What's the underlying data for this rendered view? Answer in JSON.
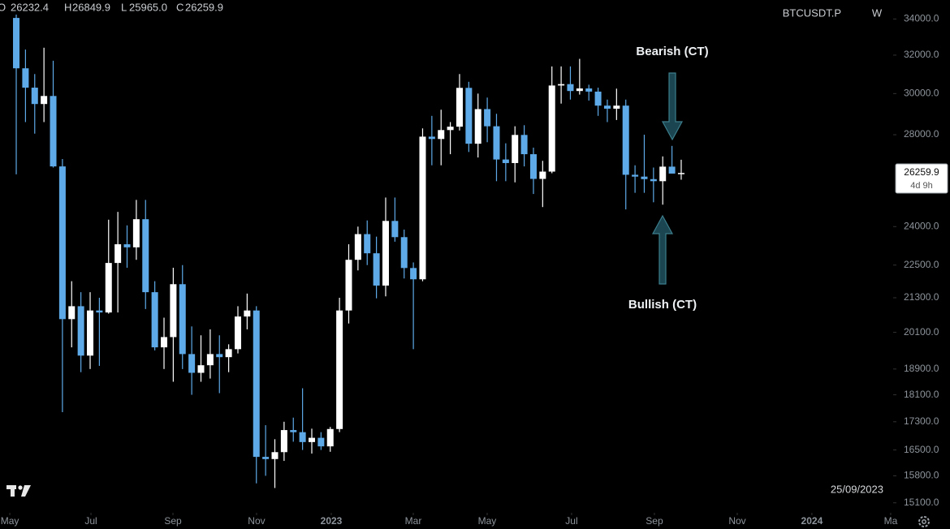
{
  "chart_data": {
    "type": "candlestick",
    "symbol": "BTCUSDT.P",
    "interval": "W",
    "ohlc_header": [
      {
        "key": "O",
        "value": "26232.4"
      },
      {
        "key": "H",
        "value": "26849.9"
      },
      {
        "key": "L",
        "value": "25965.0"
      },
      {
        "key": "C",
        "value": "26259.9"
      }
    ],
    "open": [
      34060,
      31300,
      30300,
      29480,
      29880,
      26550,
      20550,
      21000,
      19330,
      20850,
      20780,
      22580,
      23300,
      23180,
      24300,
      21500,
      19600,
      19940,
      21790,
      19380,
      18780,
      19020,
      19380,
      19280,
      19540,
      20640,
      20850,
      16310,
      16250,
      16440,
      17060,
      17000,
      16720,
      16840,
      16600,
      17090,
      20850,
      22700,
      23700,
      22950,
      21740,
      24230,
      23580,
      22390,
      21970,
      27910,
      27800,
      28220,
      28380,
      30290,
      27580,
      29230,
      28400,
      26860,
      26700,
      27990,
      27100,
      26000,
      26320,
      30410,
      30480,
      30130,
      30260,
      30100,
      29400,
      29250,
      29400,
      26180,
      26100,
      25990,
      25900,
      26540,
      26232.4
    ],
    "high": [
      34250,
      32300,
      31000,
      32400,
      31700,
      26880,
      21900,
      21500,
      21500,
      21300,
      24280,
      24600,
      24050,
      25100,
      25100,
      21900,
      20600,
      22400,
      22500,
      20300,
      20000,
      20200,
      20000,
      19700,
      21000,
      21450,
      21000,
      17200,
      16800,
      17300,
      17420,
      18300,
      17100,
      17000,
      17150,
      21300,
      23300,
      24000,
      24250,
      23600,
      25200,
      25200,
      23880,
      22600,
      28300,
      28900,
      29200,
      28600,
      31000,
      30600,
      30000,
      29800,
      29000,
      27600,
      28400,
      28450,
      27400,
      26800,
      31400,
      31400,
      31400,
      31800,
      30450,
      30300,
      29700,
      30250,
      29700,
      26600,
      28000,
      26500,
      27000,
      27480,
      26849.9
    ],
    "low": [
      26200,
      28600,
      28050,
      28600,
      26500,
      17580,
      19600,
      18800,
      18900,
      19000,
      20740,
      20780,
      22400,
      22700,
      20900,
      19500,
      18900,
      18500,
      18900,
      18100,
      18500,
      18600,
      18150,
      18800,
      19400,
      20200,
      15600,
      15800,
      15480,
      16200,
      16730,
      16500,
      16400,
      16500,
      16450,
      17000,
      20400,
      22300,
      22500,
      21280,
      21350,
      23400,
      22000,
      19540,
      21900,
      26600,
      26600,
      27100,
      28200,
      27200,
      26950,
      27650,
      25900,
      25900,
      25850,
      26550,
      25350,
      24800,
      26250,
      29500,
      29700,
      29950,
      29650,
      28900,
      28600,
      28700,
      24700,
      25400,
      25400,
      25000,
      24900,
      26300,
      25965.0
    ],
    "close": [
      31300,
      30300,
      29480,
      29880,
      26550,
      20550,
      21000,
      19330,
      20850,
      20780,
      22580,
      23300,
      23180,
      24300,
      21500,
      19600,
      19940,
      21790,
      19380,
      18780,
      19020,
      19380,
      19280,
      19540,
      20640,
      20850,
      16310,
      16250,
      16440,
      17060,
      17000,
      16720,
      16840,
      16600,
      17090,
      20850,
      22700,
      23700,
      22950,
      21740,
      24230,
      23580,
      22390,
      21970,
      27910,
      27800,
      28220,
      28380,
      30290,
      27580,
      29230,
      28400,
      26860,
      26700,
      27990,
      27100,
      26000,
      26320,
      30410,
      30480,
      30130,
      30260,
      30100,
      29400,
      29250,
      29400,
      26180,
      26100,
      25990,
      25900,
      26540,
      26232.4,
      26259.9
    ],
    "colors": {
      "up": "#ffffff",
      "down": "#5eaae8"
    },
    "log_scale": true,
    "ylim": [
      14850,
      35100
    ],
    "yticks": [
      {
        "value": 34000,
        "label": "34000.0"
      },
      {
        "value": 32000,
        "label": "32000.0"
      },
      {
        "value": 30000,
        "label": "30000.0"
      },
      {
        "value": 28000,
        "label": "28000.0"
      },
      {
        "value": 24000,
        "label": "24000.0"
      },
      {
        "value": 22500,
        "label": "22500.0"
      },
      {
        "value": 21300,
        "label": "21300.0"
      },
      {
        "value": 20100,
        "label": "20100.0"
      },
      {
        "value": 18900,
        "label": "18900.0"
      },
      {
        "value": 18100,
        "label": "18100.0"
      },
      {
        "value": 17300,
        "label": "17300.0"
      },
      {
        "value": 16500,
        "label": "16500.0"
      },
      {
        "value": 15800,
        "label": "15800.0"
      },
      {
        "value": 15100,
        "label": "15100.0"
      }
    ],
    "xlim": [
      -1.76,
      94.95
    ],
    "xticks": [
      {
        "value": -0.7,
        "label": "May"
      },
      {
        "value": 8.09,
        "label": "Jul"
      },
      {
        "value": 16.97,
        "label": "Sep"
      },
      {
        "value": 26.02,
        "label": "Nov"
      },
      {
        "value": 34.11,
        "label": "2023"
      },
      {
        "value": 42.99,
        "label": "Mar"
      },
      {
        "value": 50.99,
        "label": "May"
      },
      {
        "value": 60.13,
        "label": "Jul"
      },
      {
        "value": 69.1,
        "label": "Sep"
      },
      {
        "value": 78.07,
        "label": "Nov"
      },
      {
        "value": 86.15,
        "label": "2024"
      },
      {
        "value": 94.68,
        "label": "Ma"
      }
    ],
    "last_price_label": "26259.9",
    "countdown": "4d 9h",
    "date_label": "25/09/2023",
    "annotations": [
      {
        "text": "Bearish (CT)"
      },
      {
        "text": "Bullish (CT)"
      }
    ]
  }
}
